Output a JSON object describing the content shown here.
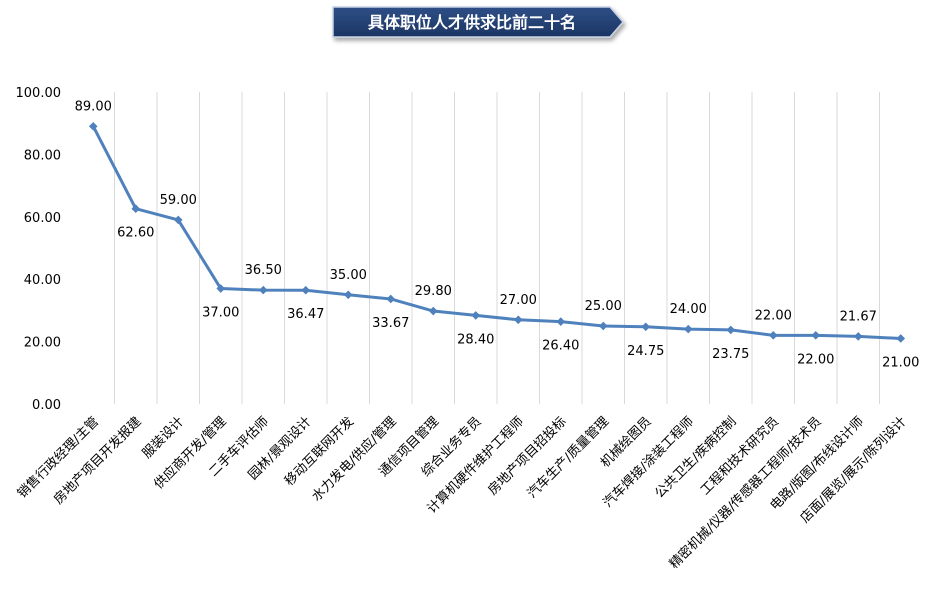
{
  "chart_data": {
    "type": "line",
    "title": "具体职位人才供求比前二十名",
    "xlabel": "",
    "ylabel": "",
    "ylim": [
      0,
      100
    ],
    "yticks": [
      "0.00",
      "20.00",
      "40.00",
      "60.00",
      "80.00",
      "100.00"
    ],
    "grid": "vertical",
    "legend": "none",
    "colors": {
      "line": "#4f81bd",
      "title_bg": "#1f3864",
      "title_text": "#ffffff",
      "axis_text": "#000000",
      "grid": "#d9d9d9"
    },
    "categories": [
      "销售行政经理/主管",
      "房地产项目开发报建",
      "服装设计",
      "供应商开发/管理",
      "二手车评估师",
      "园林/景观设计",
      "移动互联网开发",
      "水力发电/供应/管理",
      "通信项目管理",
      "综合业务专员",
      "计算机硬件维护工程师",
      "房地产项目招投标",
      "汽车生产/质量管理",
      "机械绘图员",
      "汽车焊接/涂装工程师",
      "公共卫生/疾病控制",
      "工程和技术研究员",
      "精密机械/仪器/传感器工程师/技术员",
      "电路/版图/布线设计师",
      "店面/展览/展示/陈列设计"
    ],
    "values": [
      89.0,
      62.6,
      59.0,
      37.0,
      36.5,
      36.47,
      35.0,
      33.67,
      29.8,
      28.4,
      27.0,
      26.4,
      25.0,
      24.75,
      24.0,
      23.75,
      22.0,
      22.0,
      21.67,
      21.0
    ],
    "value_labels": [
      "89.00",
      "62.60",
      "59.00",
      "37.00",
      "36.50",
      "36.47",
      "35.00",
      "33.67",
      "29.80",
      "28.40",
      "27.00",
      "26.40",
      "25.00",
      "24.75",
      "24.00",
      "23.75",
      "22.00",
      "22.00",
      "21.67",
      "21.00"
    ]
  }
}
